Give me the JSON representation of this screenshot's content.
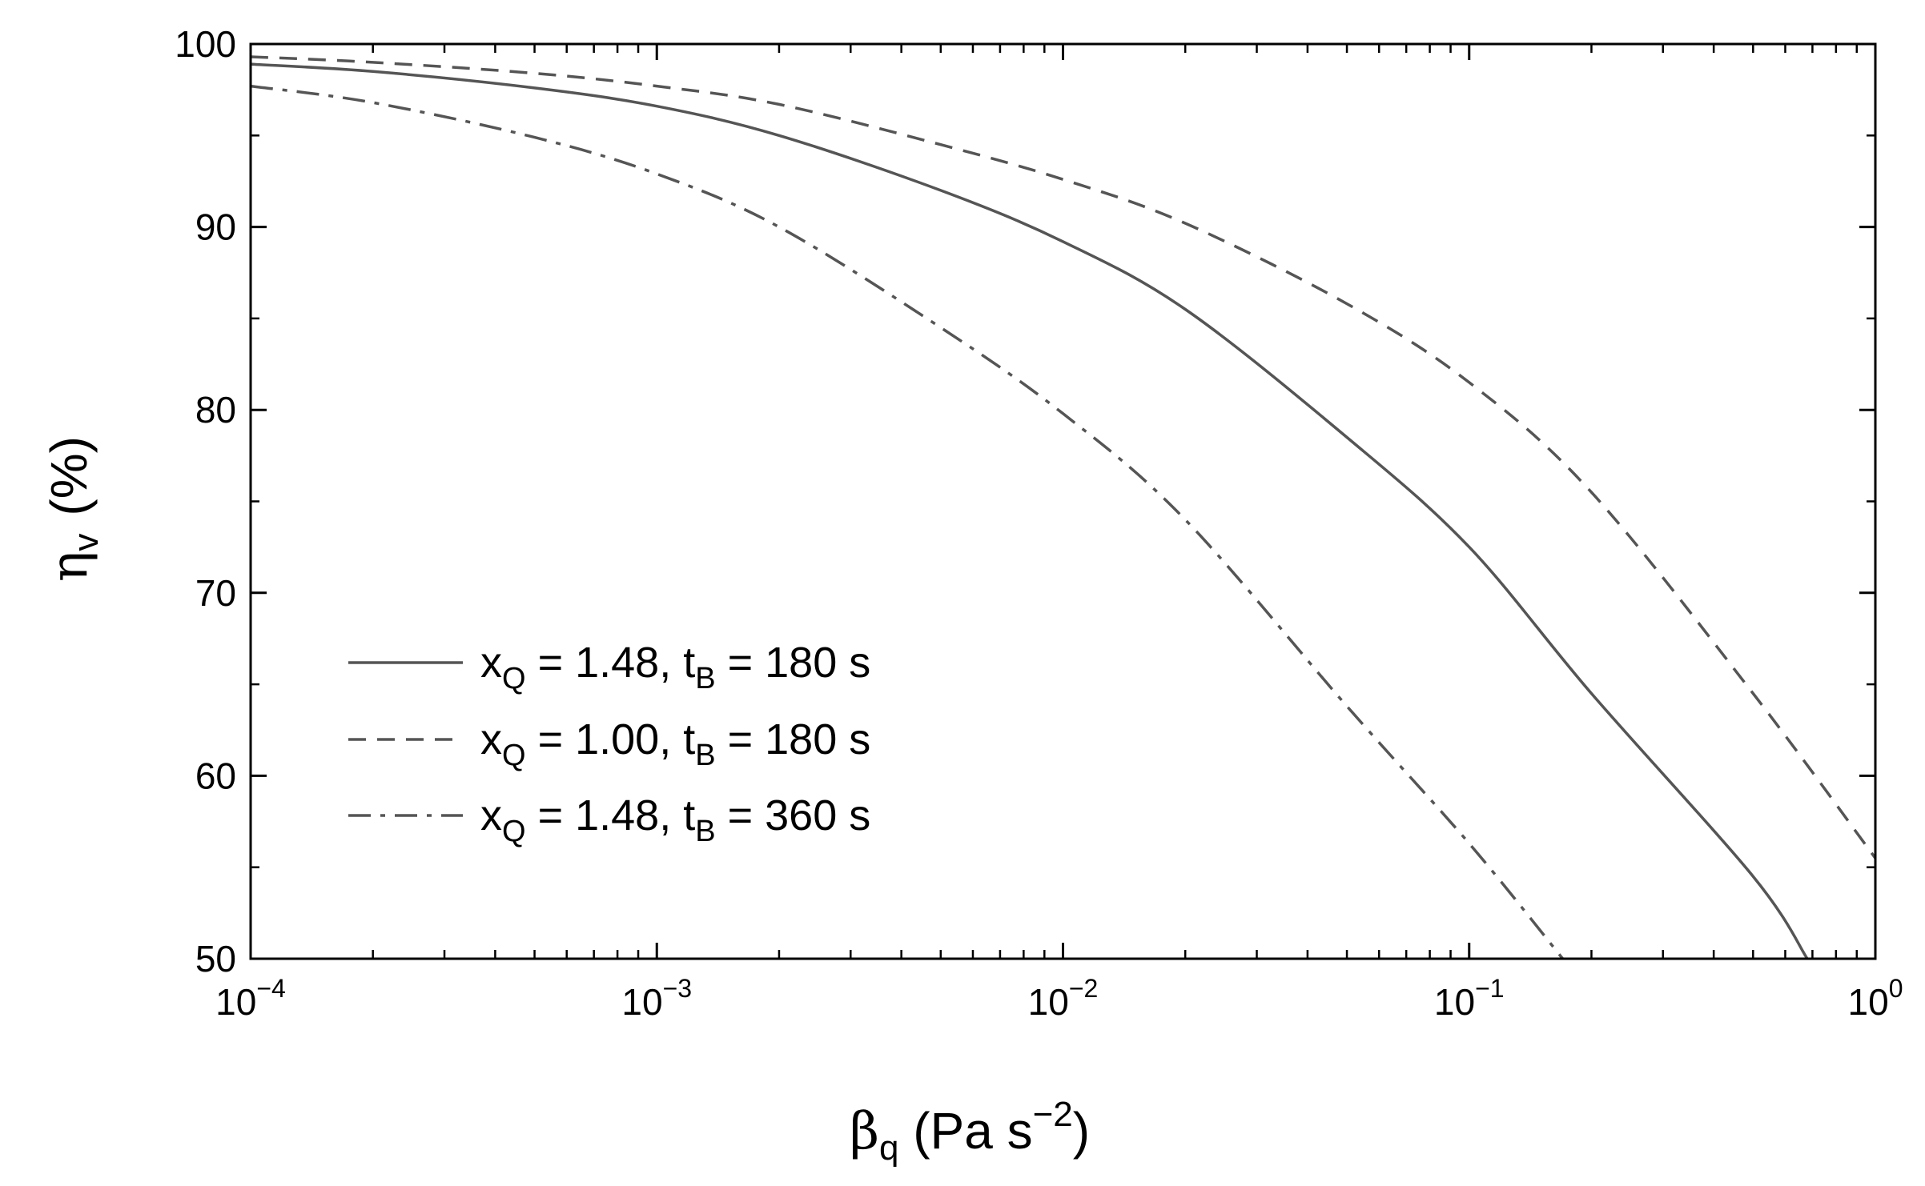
{
  "chart_data": {
    "type": "line",
    "x_scale": "log",
    "xlim": [
      0.0001,
      1
    ],
    "ylim": [
      50,
      100
    ],
    "grid": false,
    "legend_position": "lower-left",
    "colors": {
      "line": "#555555",
      "axis": "#000000"
    },
    "x_ticks": [
      {
        "value": 0.0001,
        "base": "10",
        "exp": "−4"
      },
      {
        "value": 0.001,
        "base": "10",
        "exp": "−3"
      },
      {
        "value": 0.01,
        "base": "10",
        "exp": "−2"
      },
      {
        "value": 0.1,
        "base": "10",
        "exp": "−1"
      },
      {
        "value": 1,
        "base": "10",
        "exp": "0"
      }
    ],
    "y_ticks": [
      {
        "value": 50,
        "label": "50"
      },
      {
        "value": 60,
        "label": "60"
      },
      {
        "value": 70,
        "label": "70"
      },
      {
        "value": 80,
        "label": "80"
      },
      {
        "value": 90,
        "label": "90"
      },
      {
        "value": 100,
        "label": "100"
      }
    ],
    "xlabel": {
      "symbol": "β",
      "sub": "q",
      "unit": " (Pa s",
      "sup": "−2",
      "close": ")"
    },
    "ylabel": {
      "symbol": "η",
      "sub": "v",
      "unit": "(%)"
    },
    "series": [
      {
        "legend": {
          "xvar": "x",
          "xsub": "Q",
          "xval": " = 1.48, ",
          "tvar": "t",
          "tsub": "B",
          "tval": " = 180 s"
        },
        "dash": "solid",
        "points": [
          [
            0.0001,
            98.9
          ],
          [
            0.0002,
            98.5
          ],
          [
            0.0005,
            97.6
          ],
          [
            0.001,
            96.6
          ],
          [
            0.002,
            95.0
          ],
          [
            0.005,
            92.0
          ],
          [
            0.01,
            89.2
          ],
          [
            0.02,
            85.5
          ],
          [
            0.05,
            78.5
          ],
          [
            0.1,
            72.5
          ],
          [
            0.2,
            64.5
          ],
          [
            0.5,
            54.5
          ],
          [
            0.68,
            50.0
          ]
        ]
      },
      {
        "legend": {
          "xvar": "x",
          "xsub": "Q",
          "xval": " = 1.00, ",
          "tvar": "t",
          "tsub": "B",
          "tval": " = 180 s"
        },
        "dash": "dashed",
        "points": [
          [
            0.0001,
            99.3
          ],
          [
            0.0002,
            99.0
          ],
          [
            0.0005,
            98.4
          ],
          [
            0.001,
            97.7
          ],
          [
            0.002,
            96.7
          ],
          [
            0.005,
            94.5
          ],
          [
            0.01,
            92.6
          ],
          [
            0.02,
            90.2
          ],
          [
            0.05,
            85.8
          ],
          [
            0.1,
            81.5
          ],
          [
            0.2,
            75.5
          ],
          [
            0.5,
            64.5
          ],
          [
            1,
            55.5
          ]
        ]
      },
      {
        "legend": {
          "xvar": "x",
          "xsub": "Q",
          "xval": " = 1.48, ",
          "tvar": "t",
          "tsub": "B",
          "tval": " = 360 s"
        },
        "dash": "dashdot",
        "points": [
          [
            0.0001,
            97.7
          ],
          [
            0.0002,
            96.8
          ],
          [
            0.0005,
            94.9
          ],
          [
            0.001,
            92.9
          ],
          [
            0.002,
            90.0
          ],
          [
            0.005,
            84.5
          ],
          [
            0.01,
            79.8
          ],
          [
            0.02,
            74.0
          ],
          [
            0.05,
            63.8
          ],
          [
            0.1,
            56.3
          ],
          [
            0.17,
            50.0
          ]
        ]
      }
    ]
  }
}
